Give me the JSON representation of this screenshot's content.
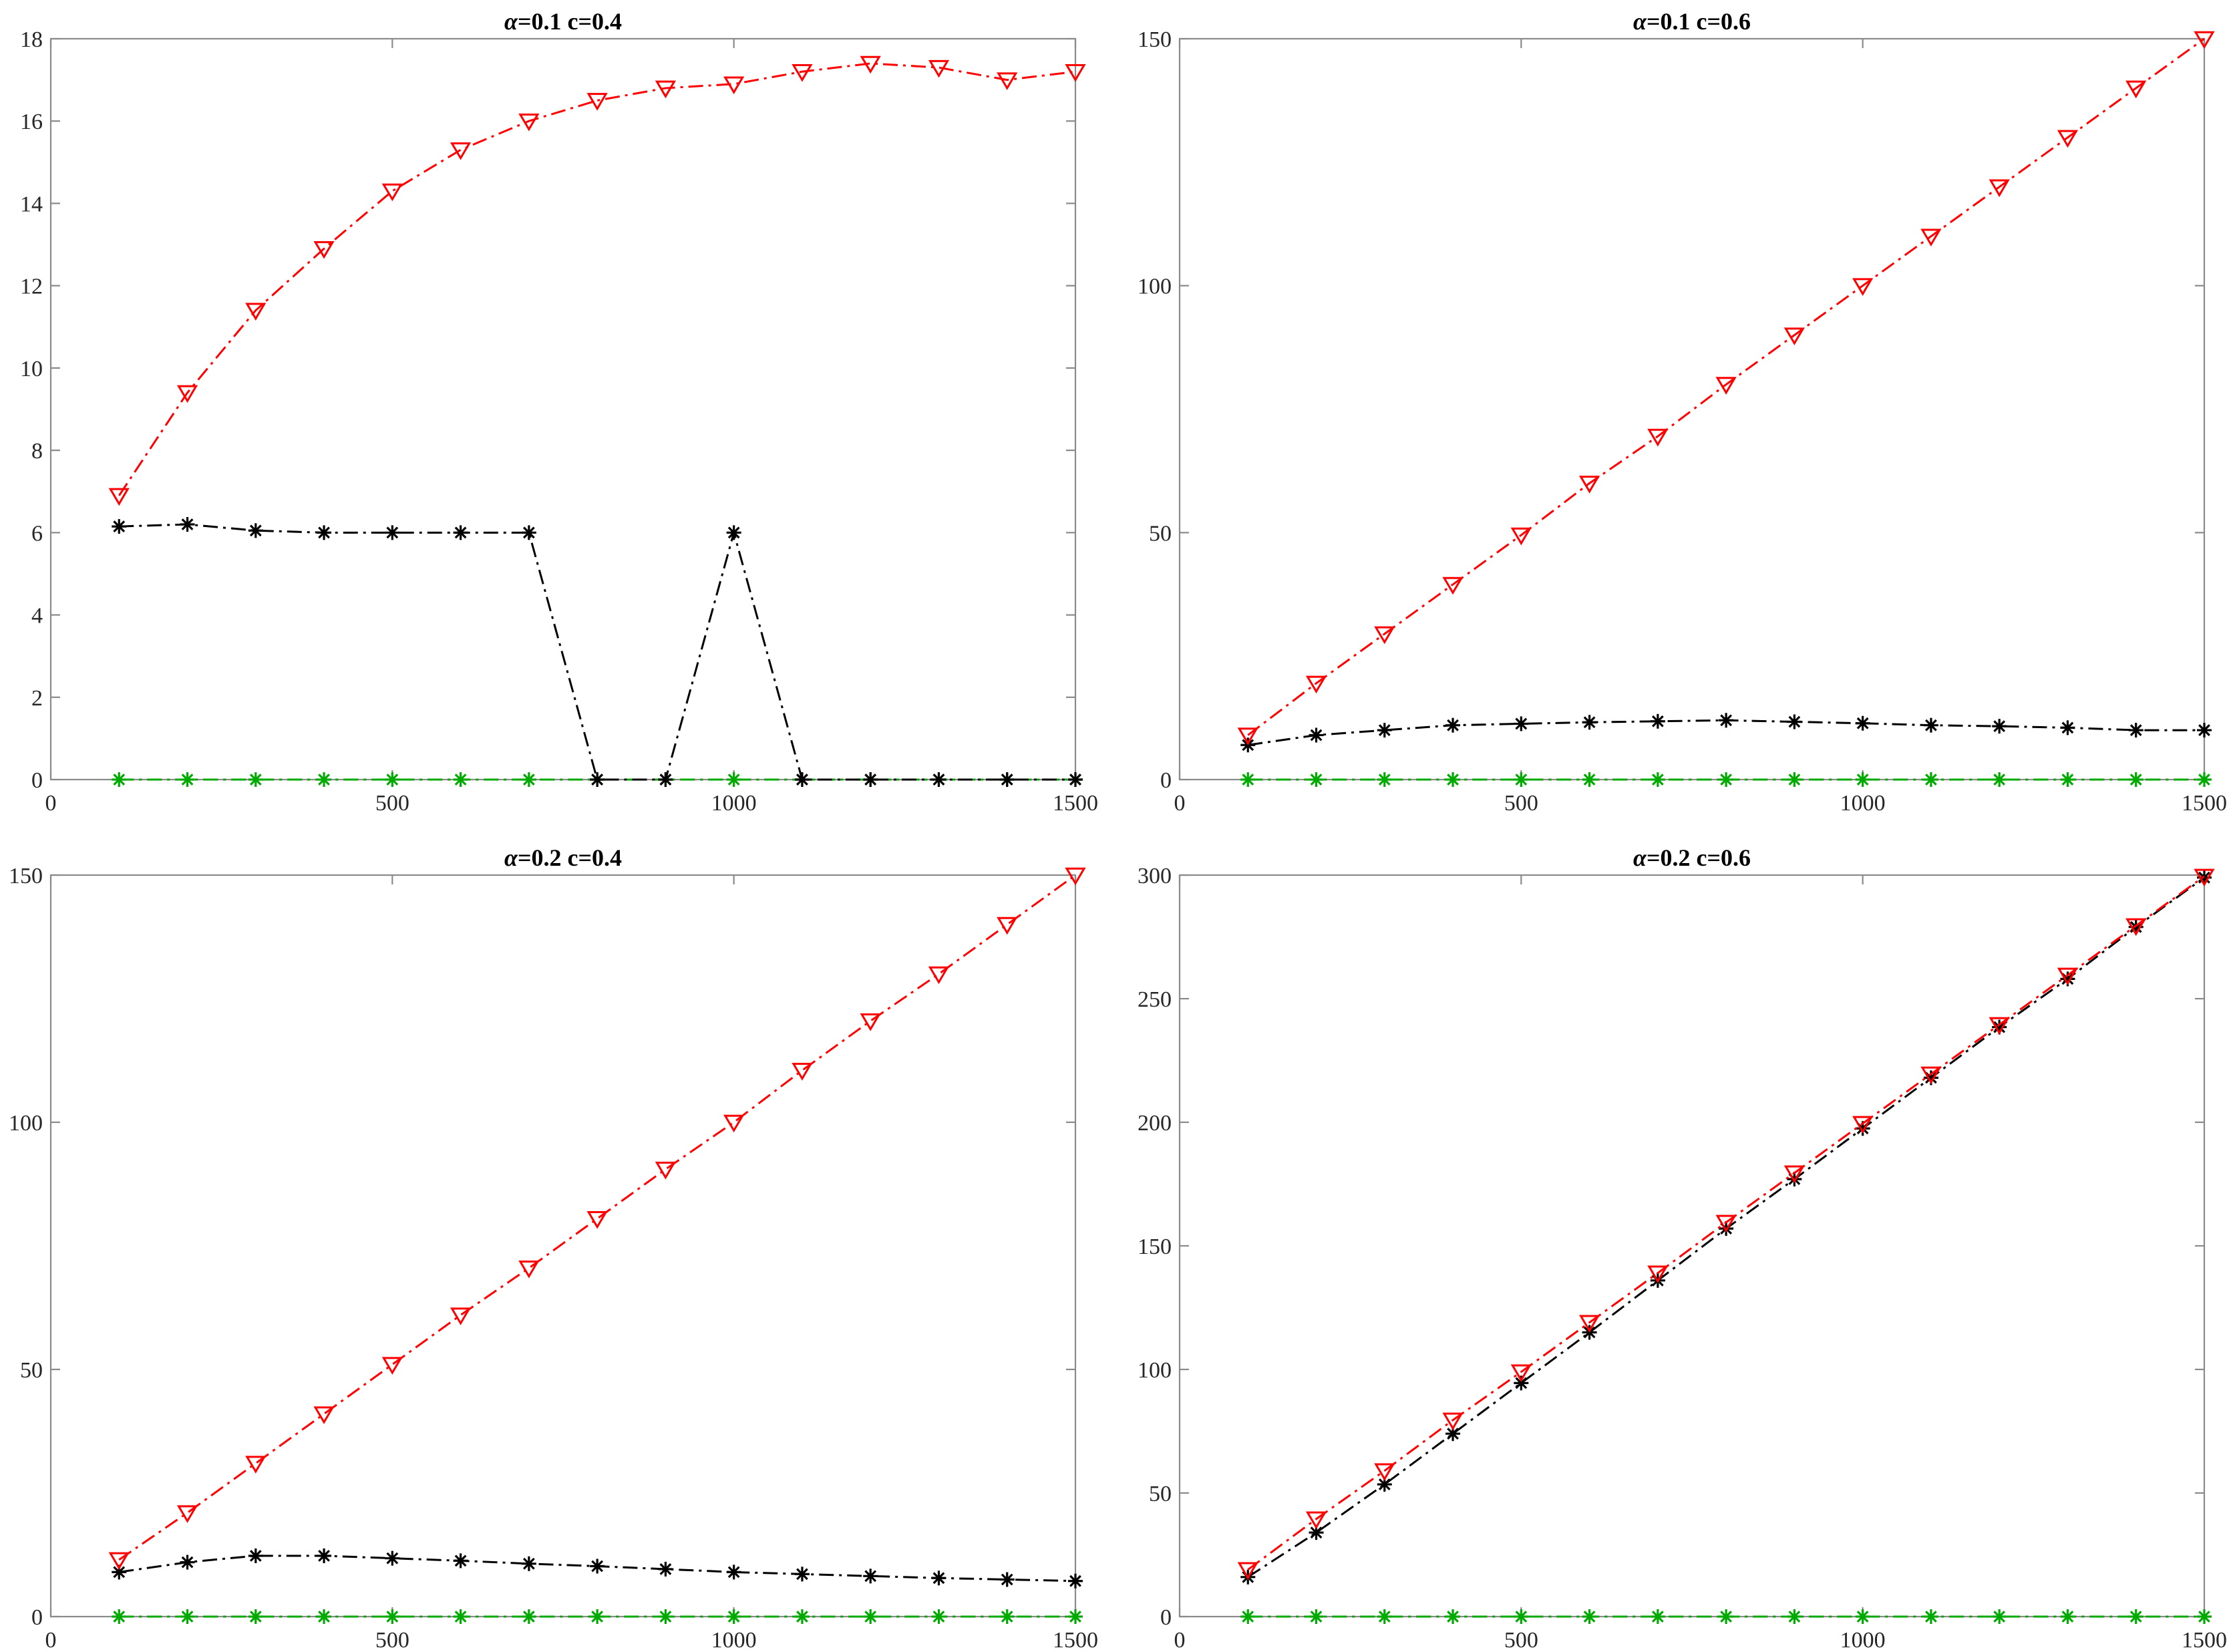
{
  "chart_data": [
    {
      "type": "line",
      "title_symbol": "α",
      "title_rest": "=0.1 c=0.4",
      "x": [
        100,
        200,
        300,
        400,
        500,
        600,
        700,
        800,
        900,
        1000,
        1100,
        1200,
        1300,
        1400,
        1500
      ],
      "xlim": [
        0,
        1500
      ],
      "ylim": [
        0,
        18
      ],
      "xticks": [
        "0",
        "500",
        "1000",
        "1500"
      ],
      "yticks": [
        "0",
        "2",
        "4",
        "6",
        "8",
        "10",
        "12",
        "14",
        "16",
        "18"
      ],
      "grid": false,
      "series": [
        {
          "color": "#ff0000",
          "marker": "triangle-down",
          "line": "dash-dot",
          "values": [
            6.9,
            9.4,
            11.4,
            12.9,
            14.3,
            15.3,
            16.0,
            16.5,
            16.8,
            16.9,
            17.2,
            17.4,
            17.3,
            17.0,
            17.2
          ]
        },
        {
          "color": "#000000",
          "marker": "asterisk",
          "line": "dash-dot",
          "values": [
            6.15,
            6.2,
            6.05,
            6.0,
            6.0,
            6.0,
            6.0,
            0,
            0,
            6.0,
            0,
            0,
            0,
            0,
            0
          ]
        },
        {
          "color": "#00aa00",
          "marker": "asterisk",
          "line": "dash-dot",
          "values": [
            0,
            0,
            0,
            0,
            0,
            0,
            0,
            0,
            0,
            0,
            0,
            0,
            0,
            0,
            0
          ]
        },
        {
          "color": "#cc00cc",
          "marker": "none",
          "line": "dash-dot",
          "values": [
            0,
            0,
            0,
            0,
            0,
            0,
            0,
            0,
            0,
            0,
            0,
            0,
            0,
            0,
            0
          ]
        }
      ]
    },
    {
      "type": "line",
      "title_symbol": "α",
      "title_rest": "=0.1 c=0.6",
      "x": [
        100,
        200,
        300,
        400,
        500,
        600,
        700,
        800,
        900,
        1000,
        1100,
        1200,
        1300,
        1400,
        1500
      ],
      "xlim": [
        0,
        1500
      ],
      "ylim": [
        0,
        150
      ],
      "xticks": [
        "0",
        "500",
        "1000",
        "1500"
      ],
      "yticks": [
        "0",
        "50",
        "100",
        "150"
      ],
      "grid": false,
      "series": [
        {
          "color": "#ff0000",
          "marker": "triangle-down",
          "line": "dash-dot",
          "values": [
            9,
            19.5,
            29.5,
            39.5,
            49.5,
            60,
            69.5,
            80,
            90,
            100,
            110,
            120,
            130,
            140,
            150
          ]
        },
        {
          "color": "#000000",
          "marker": "asterisk",
          "line": "dash-dot",
          "values": [
            7,
            9,
            10,
            11,
            11.3,
            11.6,
            11.8,
            12,
            11.7,
            11.4,
            11,
            10.8,
            10.5,
            10,
            10
          ]
        },
        {
          "color": "#00aa00",
          "marker": "asterisk",
          "line": "dash-dot",
          "values": [
            0,
            0,
            0,
            0,
            0,
            0,
            0,
            0,
            0,
            0,
            0,
            0,
            0,
            0,
            0
          ]
        },
        {
          "color": "#cc00cc",
          "marker": "none",
          "line": "dash-dot",
          "values": [
            0,
            0,
            0,
            0,
            0,
            0,
            0,
            0,
            0,
            0,
            0,
            0,
            0,
            0,
            0
          ]
        }
      ]
    },
    {
      "type": "line",
      "title_symbol": "α",
      "title_rest": "=0.2 c=0.4",
      "x": [
        100,
        200,
        300,
        400,
        500,
        600,
        700,
        800,
        900,
        1000,
        1100,
        1200,
        1300,
        1400,
        1500
      ],
      "xlim": [
        0,
        1500
      ],
      "ylim": [
        0,
        150
      ],
      "xticks": [
        "0",
        "500",
        "1000",
        "1500"
      ],
      "yticks": [
        "0",
        "50",
        "100",
        "150"
      ],
      "grid": false,
      "series": [
        {
          "color": "#ff0000",
          "marker": "triangle-down",
          "line": "dash-dot",
          "values": [
            11.5,
            21,
            31,
            41,
            51,
            61,
            70.5,
            80.5,
            90.5,
            100,
            110.5,
            120.5,
            130,
            140,
            150
          ]
        },
        {
          "color": "#000000",
          "marker": "asterisk",
          "line": "dash-dot",
          "values": [
            9,
            11,
            12.3,
            12.3,
            11.8,
            11.3,
            10.7,
            10.2,
            9.6,
            9,
            8.6,
            8.2,
            7.8,
            7.5,
            7.2
          ]
        },
        {
          "color": "#00aa00",
          "marker": "asterisk",
          "line": "dash-dot",
          "values": [
            0,
            0,
            0,
            0,
            0,
            0,
            0,
            0,
            0,
            0,
            0,
            0,
            0,
            0,
            0
          ]
        },
        {
          "color": "#cc00cc",
          "marker": "none",
          "line": "dash-dot",
          "values": [
            0,
            0,
            0,
            0,
            0,
            0,
            0,
            0,
            0,
            0,
            0,
            0,
            0,
            0,
            0
          ]
        }
      ]
    },
    {
      "type": "line",
      "title_symbol": "α",
      "title_rest": "=0.2 c=0.6",
      "x": [
        100,
        200,
        300,
        400,
        500,
        600,
        700,
        800,
        900,
        1000,
        1100,
        1200,
        1300,
        1400,
        1500
      ],
      "xlim": [
        0,
        1500
      ],
      "ylim": [
        0,
        300
      ],
      "xticks": [
        "0",
        "500",
        "1000",
        "1500"
      ],
      "yticks": [
        "0",
        "50",
        "100",
        "150",
        "200",
        "250",
        "300"
      ],
      "grid": false,
      "series": [
        {
          "color": "#ff0000",
          "marker": "triangle-down",
          "line": "dash-dot",
          "values": [
            19,
            39.5,
            59,
            79.5,
            99,
            119,
            139,
            159.5,
            179.5,
            199.5,
            219.5,
            239.5,
            259.5,
            279.5,
            299.5
          ]
        },
        {
          "color": "#000000",
          "marker": "asterisk",
          "line": "dash-dot",
          "values": [
            16,
            34,
            53.5,
            74,
            94.5,
            115,
            136,
            157,
            177,
            197.5,
            218,
            238.5,
            258,
            279,
            299
          ]
        },
        {
          "color": "#00aa00",
          "marker": "asterisk",
          "line": "dash-dot",
          "values": [
            0,
            0,
            0,
            0,
            0,
            0,
            0,
            0,
            0,
            0,
            0,
            0,
            0,
            0,
            0
          ]
        },
        {
          "color": "#cc00cc",
          "marker": "none",
          "line": "dash-dot",
          "values": [
            0,
            0,
            0,
            0,
            0,
            0,
            0,
            0,
            0,
            0,
            0,
            0,
            0,
            0,
            0
          ]
        }
      ]
    }
  ]
}
